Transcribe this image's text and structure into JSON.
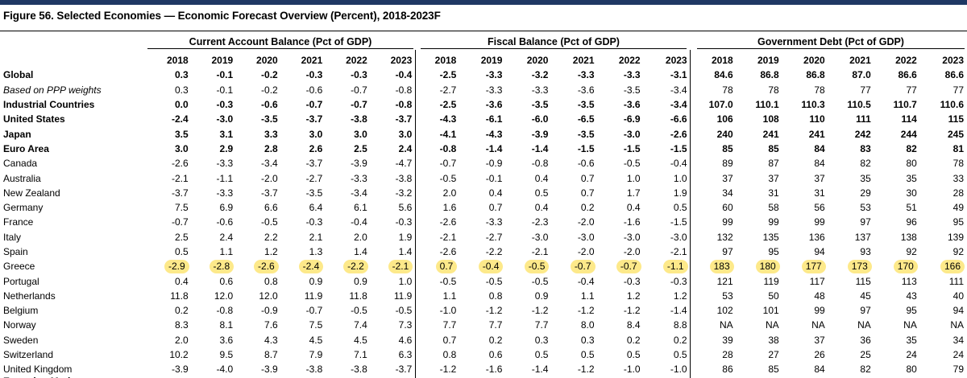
{
  "title": "Figure 56. Selected Economies — Economic Forecast Overview (Percent), 2018-2023F",
  "groups": {
    "current_account": "Current Account Balance (Pct of GDP)",
    "fiscal": "Fiscal Balance (Pct of GDP)",
    "debt": "Government Debt (Pct of GDP)"
  },
  "years": [
    "2018",
    "2019",
    "2020",
    "2021",
    "2022",
    "2023"
  ],
  "rows": [
    {
      "label": "Global",
      "style": "bold",
      "ca": [
        "0.3",
        "-0.1",
        "-0.2",
        "-0.3",
        "-0.3",
        "-0.4"
      ],
      "fb": [
        "-2.5",
        "-3.3",
        "-3.2",
        "-3.3",
        "-3.3",
        "-3.1"
      ],
      "gd": [
        "84.6",
        "86.8",
        "86.8",
        "87.0",
        "86.6",
        "86.6"
      ]
    },
    {
      "label": "Based on PPP weights",
      "style": "italic",
      "ca": [
        "0.3",
        "-0.1",
        "-0.2",
        "-0.6",
        "-0.7",
        "-0.8"
      ],
      "fb": [
        "-2.7",
        "-3.3",
        "-3.3",
        "-3.6",
        "-3.5",
        "-3.4"
      ],
      "gd": [
        "78",
        "78",
        "78",
        "77",
        "77",
        "77"
      ]
    },
    {
      "label": "Industrial Countries",
      "style": "bold",
      "ca": [
        "0.0",
        "-0.3",
        "-0.6",
        "-0.7",
        "-0.7",
        "-0.8"
      ],
      "fb": [
        "-2.5",
        "-3.6",
        "-3.5",
        "-3.5",
        "-3.6",
        "-3.4"
      ],
      "gd": [
        "107.0",
        "110.1",
        "110.3",
        "110.5",
        "110.7",
        "110.6"
      ]
    },
    {
      "label": "United States",
      "style": "bold",
      "ca": [
        "-2.4",
        "-3.0",
        "-3.5",
        "-3.7",
        "-3.8",
        "-3.7"
      ],
      "fb": [
        "-4.3",
        "-6.1",
        "-6.0",
        "-6.5",
        "-6.9",
        "-6.6"
      ],
      "gd": [
        "106",
        "108",
        "110",
        "111",
        "114",
        "115"
      ]
    },
    {
      "label": "Japan",
      "style": "bold",
      "ca": [
        "3.5",
        "3.1",
        "3.3",
        "3.0",
        "3.0",
        "3.0"
      ],
      "fb": [
        "-4.1",
        "-4.3",
        "-3.9",
        "-3.5",
        "-3.0",
        "-2.6"
      ],
      "gd": [
        "240",
        "241",
        "241",
        "242",
        "244",
        "245"
      ]
    },
    {
      "label": "Euro Area",
      "style": "bold",
      "ca": [
        "3.0",
        "2.9",
        "2.8",
        "2.6",
        "2.5",
        "2.4"
      ],
      "fb": [
        "-0.8",
        "-1.4",
        "-1.4",
        "-1.5",
        "-1.5",
        "-1.5"
      ],
      "gd": [
        "85",
        "85",
        "84",
        "83",
        "82",
        "81"
      ]
    },
    {
      "label": "Canada",
      "style": "",
      "ca": [
        "-2.6",
        "-3.3",
        "-3.4",
        "-3.7",
        "-3.9",
        "-4.7"
      ],
      "fb": [
        "-0.7",
        "-0.9",
        "-0.8",
        "-0.6",
        "-0.5",
        "-0.4"
      ],
      "gd": [
        "89",
        "87",
        "84",
        "82",
        "80",
        "78"
      ]
    },
    {
      "label": "Australia",
      "style": "",
      "ca": [
        "-2.1",
        "-1.1",
        "-2.0",
        "-2.7",
        "-3.3",
        "-3.8"
      ],
      "fb": [
        "-0.5",
        "-0.1",
        "0.4",
        "0.7",
        "1.0",
        "1.0"
      ],
      "gd": [
        "37",
        "37",
        "37",
        "35",
        "35",
        "33"
      ]
    },
    {
      "label": "New Zealand",
      "style": "",
      "ca": [
        "-3.7",
        "-3.3",
        "-3.7",
        "-3.5",
        "-3.4",
        "-3.2"
      ],
      "fb": [
        "2.0",
        "0.4",
        "0.5",
        "0.7",
        "1.7",
        "1.9"
      ],
      "gd": [
        "34",
        "31",
        "31",
        "29",
        "30",
        "28"
      ]
    },
    {
      "label": "Germany",
      "style": "",
      "ca": [
        "7.5",
        "6.9",
        "6.6",
        "6.4",
        "6.1",
        "5.6"
      ],
      "fb": [
        "1.6",
        "0.7",
        "0.4",
        "0.2",
        "0.4",
        "0.5"
      ],
      "gd": [
        "60",
        "58",
        "56",
        "53",
        "51",
        "49"
      ]
    },
    {
      "label": "France",
      "style": "",
      "ca": [
        "-0.7",
        "-0.6",
        "-0.5",
        "-0.3",
        "-0.4",
        "-0.3"
      ],
      "fb": [
        "-2.6",
        "-3.3",
        "-2.3",
        "-2.0",
        "-1.6",
        "-1.5"
      ],
      "gd": [
        "99",
        "99",
        "99",
        "97",
        "96",
        "95"
      ]
    },
    {
      "label": "Italy",
      "style": "",
      "ca": [
        "2.5",
        "2.4",
        "2.2",
        "2.1",
        "2.0",
        "1.9"
      ],
      "fb": [
        "-2.1",
        "-2.7",
        "-3.0",
        "-3.0",
        "-3.0",
        "-3.0"
      ],
      "gd": [
        "132",
        "135",
        "136",
        "137",
        "138",
        "139"
      ]
    },
    {
      "label": "Spain",
      "style": "",
      "ca": [
        "0.5",
        "1.1",
        "1.2",
        "1.3",
        "1.4",
        "1.4"
      ],
      "fb": [
        "-2.6",
        "-2.2",
        "-2.1",
        "-2.0",
        "-2.0",
        "-2.1"
      ],
      "gd": [
        "97",
        "95",
        "94",
        "93",
        "92",
        "92"
      ]
    },
    {
      "label": "Greece",
      "style": "highlight",
      "ca": [
        "-2.9",
        "-2.8",
        "-2.6",
        "-2.4",
        "-2.2",
        "-2.1"
      ],
      "fb": [
        "0.7",
        "-0.4",
        "-0.5",
        "-0.7",
        "-0.7",
        "-1.1"
      ],
      "gd": [
        "183",
        "180",
        "177",
        "173",
        "170",
        "166"
      ]
    },
    {
      "label": "Portugal",
      "style": "",
      "ca": [
        "0.4",
        "0.6",
        "0.8",
        "0.9",
        "0.9",
        "1.0"
      ],
      "fb": [
        "-0.5",
        "-0.5",
        "-0.5",
        "-0.4",
        "-0.3",
        "-0.3"
      ],
      "gd": [
        "121",
        "119",
        "117",
        "115",
        "113",
        "111"
      ]
    },
    {
      "label": "Netherlands",
      "style": "",
      "ca": [
        "11.8",
        "12.0",
        "12.0",
        "11.9",
        "11.8",
        "11.9"
      ],
      "fb": [
        "1.1",
        "0.8",
        "0.9",
        "1.1",
        "1.2",
        "1.2"
      ],
      "gd": [
        "53",
        "50",
        "48",
        "45",
        "43",
        "40"
      ]
    },
    {
      "label": "Belgium",
      "style": "",
      "ca": [
        "0.2",
        "-0.8",
        "-0.9",
        "-0.7",
        "-0.5",
        "-0.5"
      ],
      "fb": [
        "-1.0",
        "-1.2",
        "-1.2",
        "-1.2",
        "-1.2",
        "-1.4"
      ],
      "gd": [
        "102",
        "101",
        "99",
        "97",
        "95",
        "94"
      ]
    },
    {
      "label": "Norway",
      "style": "",
      "ca": [
        "8.3",
        "8.1",
        "7.6",
        "7.5",
        "7.4",
        "7.3"
      ],
      "fb": [
        "7.7",
        "7.7",
        "7.7",
        "8.0",
        "8.4",
        "8.8"
      ],
      "gd": [
        "NA",
        "NA",
        "NA",
        "NA",
        "NA",
        "NA"
      ]
    },
    {
      "label": "Sweden",
      "style": "",
      "ca": [
        "2.0",
        "3.6",
        "4.3",
        "4.5",
        "4.5",
        "4.6"
      ],
      "fb": [
        "0.7",
        "0.2",
        "0.3",
        "0.3",
        "0.2",
        "0.2"
      ],
      "gd": [
        "39",
        "38",
        "37",
        "36",
        "35",
        "34"
      ]
    },
    {
      "label": "Switzerland",
      "style": "",
      "ca": [
        "10.2",
        "9.5",
        "8.7",
        "7.9",
        "7.1",
        "6.3"
      ],
      "fb": [
        "0.8",
        "0.6",
        "0.5",
        "0.5",
        "0.5",
        "0.5"
      ],
      "gd": [
        "28",
        "27",
        "26",
        "25",
        "24",
        "24"
      ]
    },
    {
      "label": "United Kingdom",
      "style": "",
      "ca": [
        "-3.9",
        "-4.0",
        "-3.9",
        "-3.8",
        "-3.8",
        "-3.7"
      ],
      "fb": [
        "-1.2",
        "-1.6",
        "-1.4",
        "-1.2",
        "-1.0",
        "-1.0"
      ],
      "gd": [
        "86",
        "85",
        "84",
        "82",
        "80",
        "79"
      ]
    }
  ],
  "cutoff_label": "Emerging Markets",
  "colors": {
    "topbar": "#1f3864",
    "highlight": "#fde98a"
  }
}
